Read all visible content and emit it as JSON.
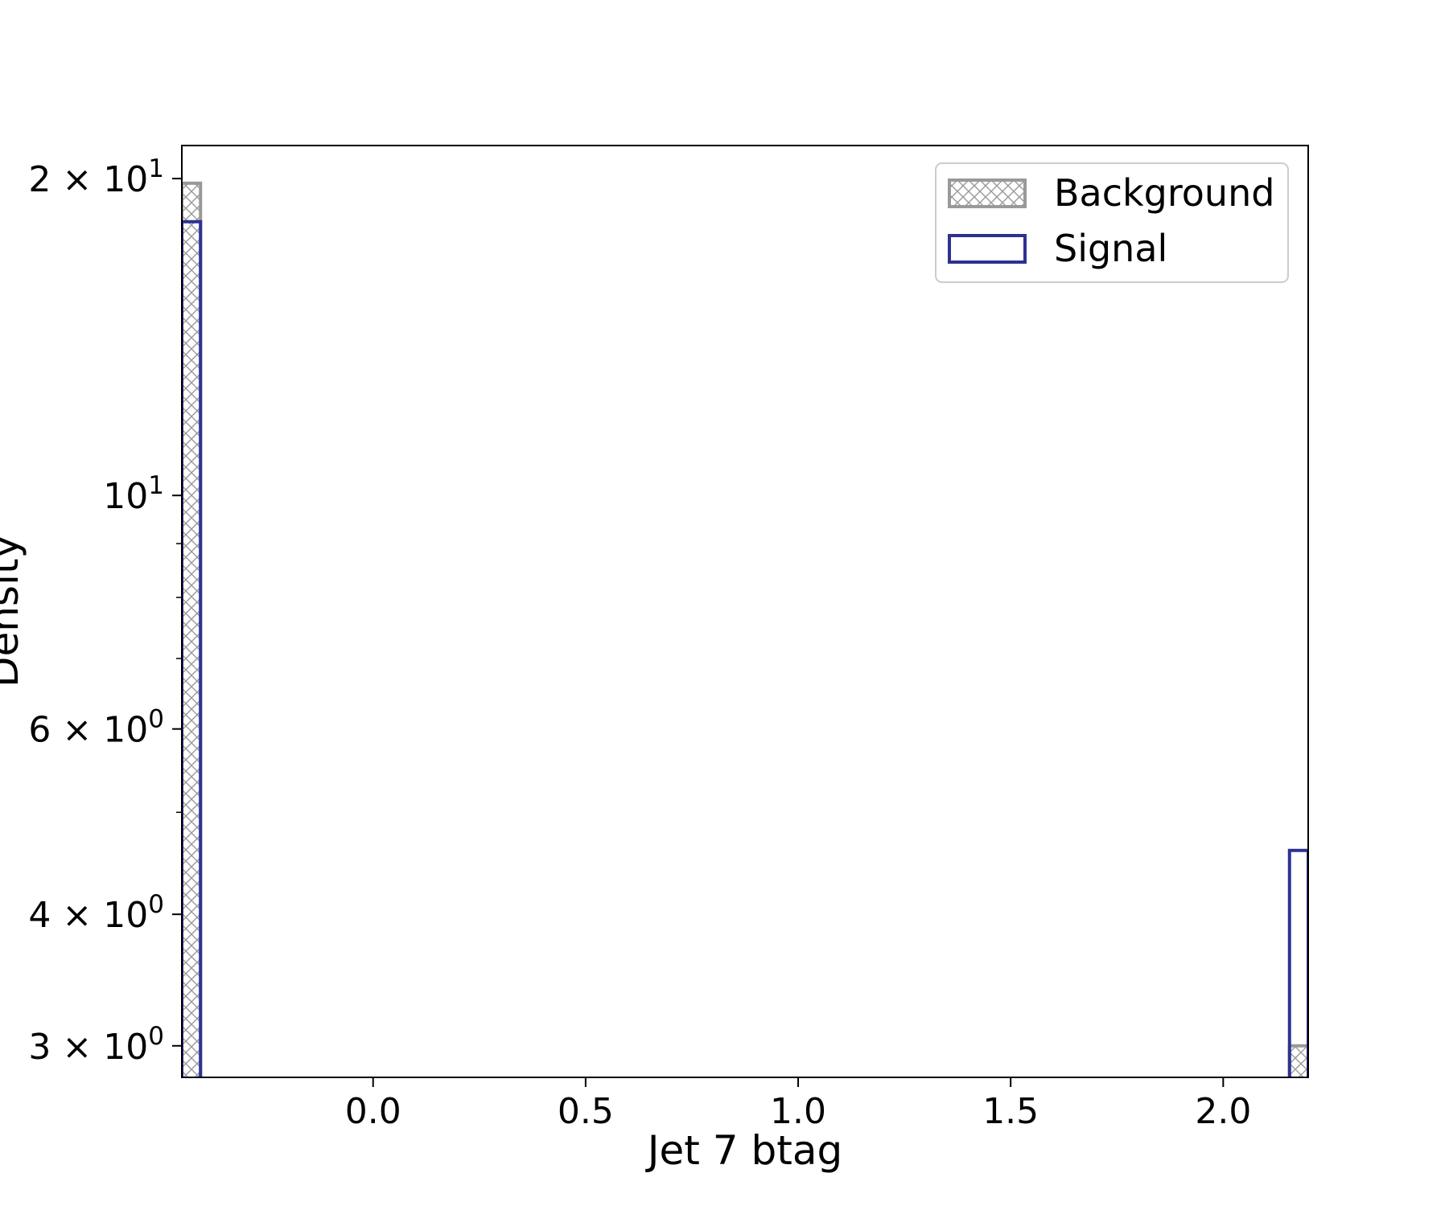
{
  "chart_data": {
    "type": "histogram",
    "title": "",
    "xlabel": "Jet 7 btag",
    "ylabel": "Density",
    "yscale": "log",
    "xlim": [
      -0.45,
      2.2
    ],
    "ylim": [
      2.8,
      21.5
    ],
    "grid": false,
    "legend_placement": "top-right",
    "bin_width": 0.044,
    "x_ticks": [
      {
        "value": 0.0,
        "label": "0.0"
      },
      {
        "value": 0.5,
        "label": "0.5"
      },
      {
        "value": 1.0,
        "label": "1.0"
      },
      {
        "value": 1.5,
        "label": "1.5"
      },
      {
        "value": 2.0,
        "label": "2.0"
      }
    ],
    "y_ticks": [
      {
        "value": 3,
        "mantissa": "3",
        "base": "10",
        "exp": "0"
      },
      {
        "value": 4,
        "mantissa": "4",
        "base": "10",
        "exp": "0"
      },
      {
        "value": 6,
        "mantissa": "6",
        "base": "10",
        "exp": "0"
      },
      {
        "value": 10,
        "mantissa": "",
        "base": "10",
        "exp": "1"
      },
      {
        "value": 20,
        "mantissa": "2",
        "base": "10",
        "exp": "1"
      }
    ],
    "y_minor_ticks": [
      5,
      7,
      8,
      9
    ],
    "series": [
      {
        "name": "Background",
        "style": "hatched",
        "color": "#999999",
        "bins": [
          {
            "x0": -0.45,
            "x1": -0.406,
            "value": 19.8
          },
          {
            "x0": 2.156,
            "x1": 2.2,
            "value": 3.0
          }
        ]
      },
      {
        "name": "Signal",
        "style": "outline",
        "color": "#2e3192",
        "bins": [
          {
            "x0": -0.45,
            "x1": -0.406,
            "value": 18.2
          },
          {
            "x0": 2.156,
            "x1": 2.2,
            "value": 4.6
          }
        ]
      }
    ]
  }
}
